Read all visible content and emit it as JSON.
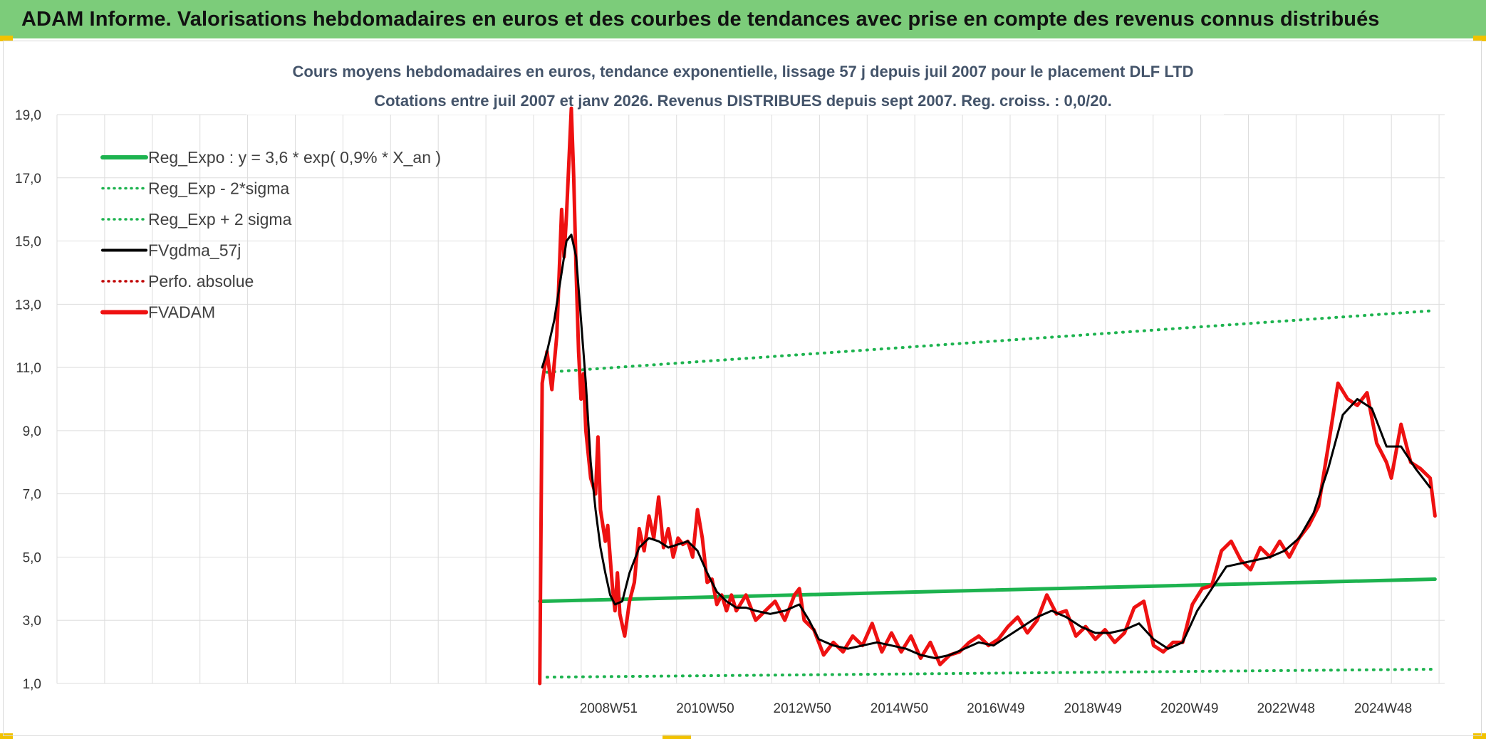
{
  "banner": {
    "title": "ADAM Informe. Valorisations hebdomadaires en euros et des courbes de tendances avec prise en compte des revenus connus distribués"
  },
  "colors": {
    "banner_bg": "#7ccc7a",
    "reg_green": "#1db34f",
    "fv_black": "#000000",
    "adam_red": "#ee1111",
    "perf_red": "#c00000",
    "grid": "#dddddd",
    "accent_yellow": "#f2c200"
  },
  "chart_data": {
    "type": "line",
    "title": "Cours moyens hebdomadaires en euros, tendance exponentielle, lissage 57 j depuis juil 2007 pour le placement DLF LTD",
    "subtitle": "Cotations entre juil 2007 et janv 2026. Revenus DISTRIBUES depuis sept 2007. Reg. croiss. : 0,0/20.",
    "xlabel": "",
    "ylabel": "",
    "xlim": [
      1997.6,
      2026.2
    ],
    "ylim": [
      1.0,
      19.0
    ],
    "y_ticks": [
      "1,0",
      "3,0",
      "5,0",
      "7,0",
      "9,0",
      "11,0",
      "13,0",
      "15,0",
      "17,0",
      "19,0"
    ],
    "y_tick_values": [
      1,
      3,
      5,
      7,
      9,
      11,
      13,
      15,
      17,
      19
    ],
    "x_tick_labels": [
      "2008W51",
      "2010W50",
      "2012W50",
      "2014W50",
      "2016W49",
      "2018W49",
      "2020W49",
      "2022W48",
      "2024W48"
    ],
    "x_tick_values": [
      2008.97,
      2010.96,
      2012.96,
      2014.96,
      2016.95,
      2018.95,
      2020.94,
      2022.93,
      2024.93
    ],
    "grid": true,
    "legend_position": "top-left",
    "series": [
      {
        "name": "Reg_Expo : y = 3,6 * exp( 0,9% *  X_an )",
        "style": "solid-thick",
        "color": "#1db34f",
        "x": [
          2007.55,
          2026.0
        ],
        "y": [
          3.6,
          4.3
        ]
      },
      {
        "name": "Reg_Exp - 2*sigma",
        "style": "dotted",
        "color": "#1db34f",
        "x": [
          2007.7,
          2026.0
        ],
        "y": [
          1.2,
          1.45
        ]
      },
      {
        "name": "Reg_Exp + 2 sigma",
        "style": "dotted",
        "color": "#1db34f",
        "x": [
          2007.7,
          2026.0
        ],
        "y": [
          10.85,
          12.8
        ]
      },
      {
        "name": "FVgdma_57j",
        "style": "solid",
        "color": "#000000",
        "x": [
          2007.6,
          2007.7,
          2007.85,
          2008.0,
          2008.1,
          2008.2,
          2008.3,
          2008.4,
          2008.5,
          2008.6,
          2008.7,
          2008.8,
          2008.9,
          2009.0,
          2009.1,
          2009.25,
          2009.4,
          2009.6,
          2009.8,
          2010.0,
          2010.2,
          2010.4,
          2010.6,
          2010.8,
          2011.0,
          2011.2,
          2011.4,
          2011.6,
          2011.8,
          2012.0,
          2012.3,
          2012.6,
          2012.9,
          2013.1,
          2013.3,
          2013.6,
          2013.9,
          2014.2,
          2014.5,
          2014.8,
          2015.1,
          2015.4,
          2015.7,
          2016.0,
          2016.3,
          2016.6,
          2016.9,
          2017.2,
          2017.5,
          2017.8,
          2018.1,
          2018.4,
          2018.7,
          2019.0,
          2019.3,
          2019.6,
          2019.9,
          2020.2,
          2020.5,
          2020.8,
          2021.1,
          2021.4,
          2021.7,
          2022.0,
          2022.3,
          2022.6,
          2022.9,
          2023.2,
          2023.5,
          2023.8,
          2024.1,
          2024.4,
          2024.7,
          2025.0,
          2025.3,
          2025.6,
          2025.9
        ],
        "y": [
          11.0,
          11.5,
          12.5,
          14.0,
          15.0,
          15.2,
          14.5,
          12.5,
          10.5,
          8.0,
          6.5,
          5.3,
          4.5,
          3.8,
          3.5,
          3.6,
          4.5,
          5.3,
          5.6,
          5.5,
          5.3,
          5.4,
          5.5,
          5.2,
          4.5,
          3.9,
          3.6,
          3.4,
          3.4,
          3.3,
          3.2,
          3.3,
          3.5,
          3.0,
          2.4,
          2.2,
          2.1,
          2.2,
          2.3,
          2.2,
          2.1,
          1.9,
          1.8,
          1.9,
          2.1,
          2.3,
          2.2,
          2.5,
          2.8,
          3.1,
          3.3,
          3.1,
          2.8,
          2.6,
          2.6,
          2.7,
          2.9,
          2.4,
          2.1,
          2.3,
          3.3,
          4.0,
          4.7,
          4.8,
          4.9,
          5.0,
          5.2,
          5.6,
          6.4,
          7.8,
          9.5,
          10.0,
          9.7,
          8.5,
          8.5,
          7.8,
          7.2
        ]
      },
      {
        "name": "Perfo. absolue",
        "style": "dotted",
        "color": "#c00000",
        "x": [],
        "y": []
      },
      {
        "name": "FVADAM",
        "style": "solid-thick",
        "color": "#ee1111",
        "x": [
          2007.55,
          2007.6,
          2007.7,
          2007.8,
          2007.9,
          2008.0,
          2008.05,
          2008.1,
          2008.15,
          2008.2,
          2008.25,
          2008.3,
          2008.35,
          2008.4,
          2008.45,
          2008.5,
          2008.6,
          2008.7,
          2008.75,
          2008.8,
          2008.9,
          2008.95,
          2009.0,
          2009.05,
          2009.1,
          2009.15,
          2009.2,
          2009.3,
          2009.4,
          2009.5,
          2009.6,
          2009.7,
          2009.8,
          2009.9,
          2010.0,
          2010.1,
          2010.2,
          2010.3,
          2010.4,
          2010.5,
          2010.6,
          2010.7,
          2010.8,
          2010.9,
          2011.0,
          2011.1,
          2011.2,
          2011.3,
          2011.4,
          2011.5,
          2011.6,
          2011.8,
          2012.0,
          2012.2,
          2012.4,
          2012.6,
          2012.8,
          2012.9,
          2013.0,
          2013.2,
          2013.4,
          2013.6,
          2013.8,
          2014.0,
          2014.2,
          2014.4,
          2014.6,
          2014.8,
          2015.0,
          2015.2,
          2015.4,
          2015.6,
          2015.8,
          2016.0,
          2016.2,
          2016.4,
          2016.6,
          2016.8,
          2017.0,
          2017.2,
          2017.4,
          2017.6,
          2017.8,
          2018.0,
          2018.2,
          2018.4,
          2018.6,
          2018.8,
          2019.0,
          2019.2,
          2019.4,
          2019.6,
          2019.8,
          2020.0,
          2020.2,
          2020.4,
          2020.6,
          2020.8,
          2021.0,
          2021.2,
          2021.4,
          2021.6,
          2021.8,
          2022.0,
          2022.2,
          2022.4,
          2022.6,
          2022.8,
          2023.0,
          2023.2,
          2023.4,
          2023.6,
          2023.8,
          2024.0,
          2024.2,
          2024.4,
          2024.6,
          2024.8,
          2025.0,
          2025.1,
          2025.3,
          2025.5,
          2025.7,
          2025.9,
          2026.0
        ],
        "y": [
          1.0,
          10.5,
          11.5,
          10.3,
          12.0,
          16.0,
          14.5,
          15.8,
          17.5,
          19.2,
          17.0,
          14.0,
          11.5,
          10.0,
          10.8,
          9.0,
          7.5,
          7.0,
          8.8,
          6.5,
          5.5,
          6.0,
          5.0,
          4.0,
          3.3,
          4.5,
          3.2,
          2.5,
          3.6,
          4.2,
          5.9,
          5.2,
          6.3,
          5.6,
          6.9,
          5.3,
          5.9,
          5.0,
          5.6,
          5.4,
          5.5,
          5.0,
          6.5,
          5.6,
          4.2,
          4.3,
          3.5,
          3.8,
          3.3,
          3.8,
          3.3,
          3.8,
          3.0,
          3.3,
          3.6,
          3.0,
          3.8,
          4.0,
          3.0,
          2.7,
          1.9,
          2.3,
          2.0,
          2.5,
          2.2,
          2.9,
          2.0,
          2.6,
          2.0,
          2.5,
          1.8,
          2.3,
          1.6,
          1.9,
          2.0,
          2.3,
          2.5,
          2.2,
          2.4,
          2.8,
          3.1,
          2.6,
          3.0,
          3.8,
          3.2,
          3.3,
          2.5,
          2.8,
          2.4,
          2.7,
          2.3,
          2.6,
          3.4,
          3.6,
          2.2,
          2.0,
          2.3,
          2.3,
          3.5,
          4.0,
          4.1,
          5.2,
          5.5,
          4.9,
          4.6,
          5.3,
          5.0,
          5.5,
          5.0,
          5.6,
          6.0,
          6.6,
          8.5,
          10.5,
          10.0,
          9.8,
          10.2,
          8.6,
          8.0,
          7.5,
          9.2,
          8.0,
          7.8,
          7.5,
          6.3
        ]
      }
    ]
  }
}
